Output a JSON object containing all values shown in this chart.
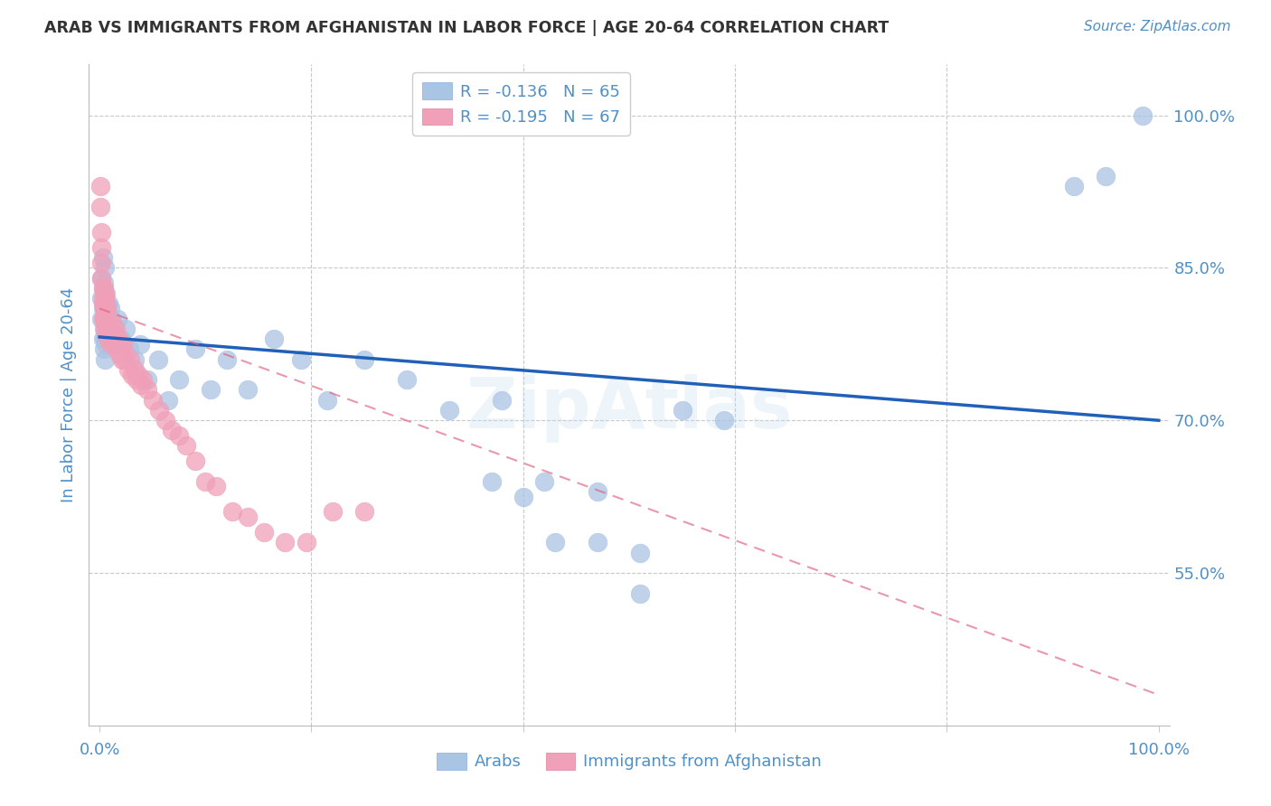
{
  "title": "ARAB VS IMMIGRANTS FROM AFGHANISTAN IN LABOR FORCE | AGE 20-64 CORRELATION CHART",
  "source_text": "Source: ZipAtlas.com",
  "ylabel": "In Labor Force | Age 20-64",
  "xlim": [
    -0.01,
    1.01
  ],
  "ylim": [
    0.4,
    1.05
  ],
  "yticks": [
    0.55,
    0.7,
    0.85,
    1.0
  ],
  "ytick_labels": [
    "55.0%",
    "70.0%",
    "85.0%",
    "100.0%"
  ],
  "xtick_labels_left": "0.0%",
  "xtick_labels_right": "100.0%",
  "legend_labels_bottom": [
    "Arabs",
    "Immigrants from Afghanistan"
  ],
  "arab_color": "#aac4e4",
  "afghan_color": "#f0a0b8",
  "trend_arab_color": "#2060b8",
  "trend_afghan_color": "#e06080",
  "background_color": "#ffffff",
  "grid_color": "#c8c8c8",
  "axis_label_color": "#5090c8",
  "tick_label_color": "#5090c8",
  "title_color": "#333333",
  "arab_legend": "R = -0.136   N = 65",
  "afghan_legend": "R = -0.195   N = 67",
  "arab_points_x": [
    0.002,
    0.002,
    0.002,
    0.003,
    0.003,
    0.003,
    0.003,
    0.004,
    0.004,
    0.004,
    0.004,
    0.005,
    0.005,
    0.005,
    0.005,
    0.005,
    0.006,
    0.006,
    0.006,
    0.007,
    0.007,
    0.008,
    0.008,
    0.009,
    0.01,
    0.01,
    0.011,
    0.012,
    0.013,
    0.015,
    0.017,
    0.02,
    0.022,
    0.025,
    0.028,
    0.033,
    0.038,
    0.045,
    0.055,
    0.065,
    0.075,
    0.09,
    0.105,
    0.12,
    0.14,
    0.165,
    0.19,
    0.215,
    0.25,
    0.29,
    0.33,
    0.38,
    0.42,
    0.47,
    0.51,
    0.55,
    0.59,
    0.37,
    0.43,
    0.4,
    0.47,
    0.51,
    0.92,
    0.95,
    0.985
  ],
  "arab_points_y": [
    0.8,
    0.82,
    0.84,
    0.78,
    0.81,
    0.83,
    0.86,
    0.77,
    0.79,
    0.815,
    0.835,
    0.76,
    0.78,
    0.8,
    0.82,
    0.85,
    0.775,
    0.8,
    0.825,
    0.78,
    0.81,
    0.79,
    0.815,
    0.795,
    0.78,
    0.81,
    0.8,
    0.78,
    0.795,
    0.785,
    0.8,
    0.78,
    0.775,
    0.79,
    0.77,
    0.76,
    0.775,
    0.74,
    0.76,
    0.72,
    0.74,
    0.77,
    0.73,
    0.76,
    0.73,
    0.78,
    0.76,
    0.72,
    0.76,
    0.74,
    0.71,
    0.72,
    0.64,
    0.58,
    0.57,
    0.71,
    0.7,
    0.64,
    0.58,
    0.625,
    0.63,
    0.53,
    0.93,
    0.94,
    1.0
  ],
  "afghan_points_x": [
    0.001,
    0.001,
    0.002,
    0.002,
    0.002,
    0.002,
    0.003,
    0.003,
    0.003,
    0.003,
    0.004,
    0.004,
    0.004,
    0.005,
    0.005,
    0.005,
    0.005,
    0.005,
    0.006,
    0.006,
    0.006,
    0.007,
    0.007,
    0.008,
    0.008,
    0.009,
    0.01,
    0.01,
    0.011,
    0.012,
    0.013,
    0.014,
    0.015,
    0.016,
    0.017,
    0.018,
    0.019,
    0.02,
    0.021,
    0.022,
    0.023,
    0.025,
    0.027,
    0.029,
    0.031,
    0.033,
    0.035,
    0.037,
    0.039,
    0.041,
    0.045,
    0.05,
    0.056,
    0.062,
    0.068,
    0.075,
    0.082,
    0.09,
    0.1,
    0.11,
    0.125,
    0.14,
    0.155,
    0.175,
    0.195,
    0.22,
    0.25
  ],
  "afghan_points_y": [
    0.93,
    0.91,
    0.885,
    0.87,
    0.855,
    0.84,
    0.83,
    0.815,
    0.8,
    0.82,
    0.81,
    0.83,
    0.8,
    0.82,
    0.805,
    0.79,
    0.81,
    0.825,
    0.8,
    0.815,
    0.785,
    0.81,
    0.79,
    0.8,
    0.78,
    0.785,
    0.79,
    0.775,
    0.78,
    0.795,
    0.78,
    0.785,
    0.79,
    0.775,
    0.77,
    0.78,
    0.765,
    0.775,
    0.76,
    0.775,
    0.76,
    0.765,
    0.75,
    0.76,
    0.745,
    0.75,
    0.74,
    0.745,
    0.735,
    0.74,
    0.73,
    0.72,
    0.71,
    0.7,
    0.69,
    0.685,
    0.675,
    0.66,
    0.64,
    0.635,
    0.61,
    0.605,
    0.59,
    0.58,
    0.58,
    0.61,
    0.61
  ],
  "arab_trend": [
    0.782,
    0.7
  ],
  "afghan_trend": [
    0.81,
    0.43
  ]
}
